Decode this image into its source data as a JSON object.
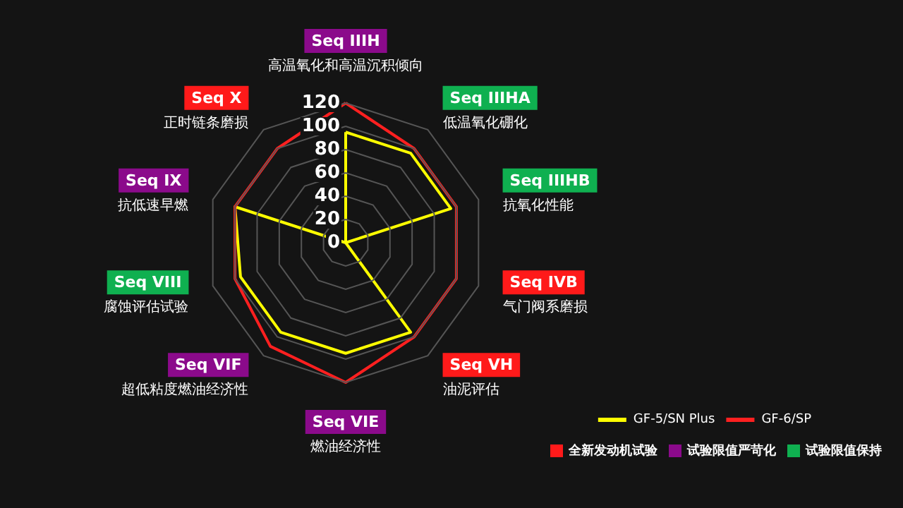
{
  "chart_data": {
    "type": "radar",
    "categories": [
      "Seq IIIH\n高温氧化和高温沉积倾向",
      "Seq IIIHA\n低温氧化硼化",
      "Seq IIIHB\n抗氧化性能",
      "Seq IVB\n气门阀系磨损",
      "Seq VH\n油泥评估",
      "Seq VIE\n燃油经济性",
      "Seq VIF\n超低粘度燃油经济性",
      "Seq VIII\n腐蚀评估试验",
      "Seq IX\n抗低速早燃",
      "Seq X\n正时链条磨损"
    ],
    "colors": [
      "#8b0a8b",
      "#0fb050",
      "#0fb050",
      "#ff1a1a",
      "#ff1a1a",
      "#8b0a8b",
      "#8b0a8b",
      "#0fb050",
      "#8b0a8b",
      "#ff1a1a"
    ],
    "series": [
      {
        "name": "GF-5/SN Plus",
        "color": "#ffff00",
        "values": [
          95,
          95,
          95,
          0,
          95,
          95,
          95,
          95,
          100,
          0
        ]
      },
      {
        "name": "GF-6/SP",
        "color": "#ff2020",
        "values": [
          120,
          100,
          100,
          100,
          100,
          120,
          110,
          100,
          100,
          100
        ]
      }
    ],
    "ylim": [
      0,
      120
    ],
    "yticks": [
      0,
      20,
      40,
      60,
      80,
      100,
      120
    ],
    "grid": true,
    "legend": "bottom right",
    "marker": "none",
    "line_style": "solid",
    "annotations": [
      "全新发动机试验",
      "试验限值严苛化",
      "试验限值保持"
    ]
  }
}
